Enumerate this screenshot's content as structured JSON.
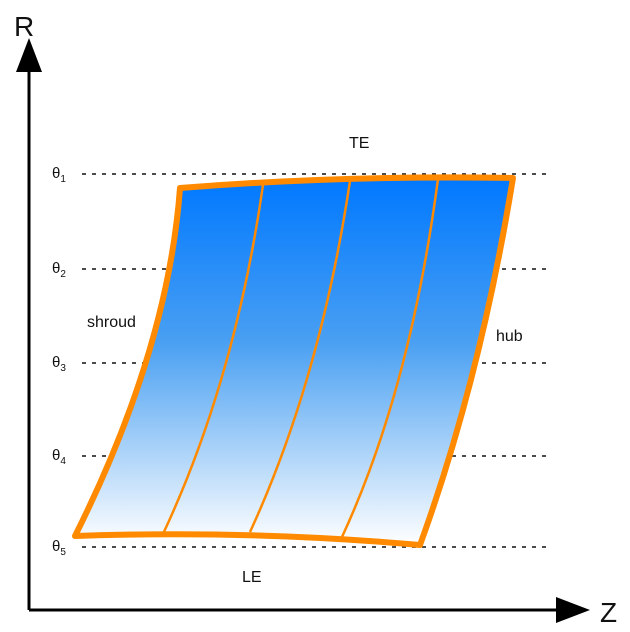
{
  "axes": {
    "vertical_label": "R",
    "horizontal_label": "Z"
  },
  "edges": {
    "top": "TE",
    "bottom": "LE",
    "left": "shroud",
    "right": "hub"
  },
  "theta_levels": [
    {
      "symbol": "θ",
      "index": "1"
    },
    {
      "symbol": "θ",
      "index": "2"
    },
    {
      "symbol": "θ",
      "index": "3"
    },
    {
      "symbol": "θ",
      "index": "4"
    },
    {
      "symbol": "θ",
      "index": "5"
    }
  ],
  "colors": {
    "outline": "#ff8a00",
    "fill_top": "#0078ff",
    "fill_bottom": "#ffffff",
    "axis": "#000000",
    "guide": "#333333"
  }
}
